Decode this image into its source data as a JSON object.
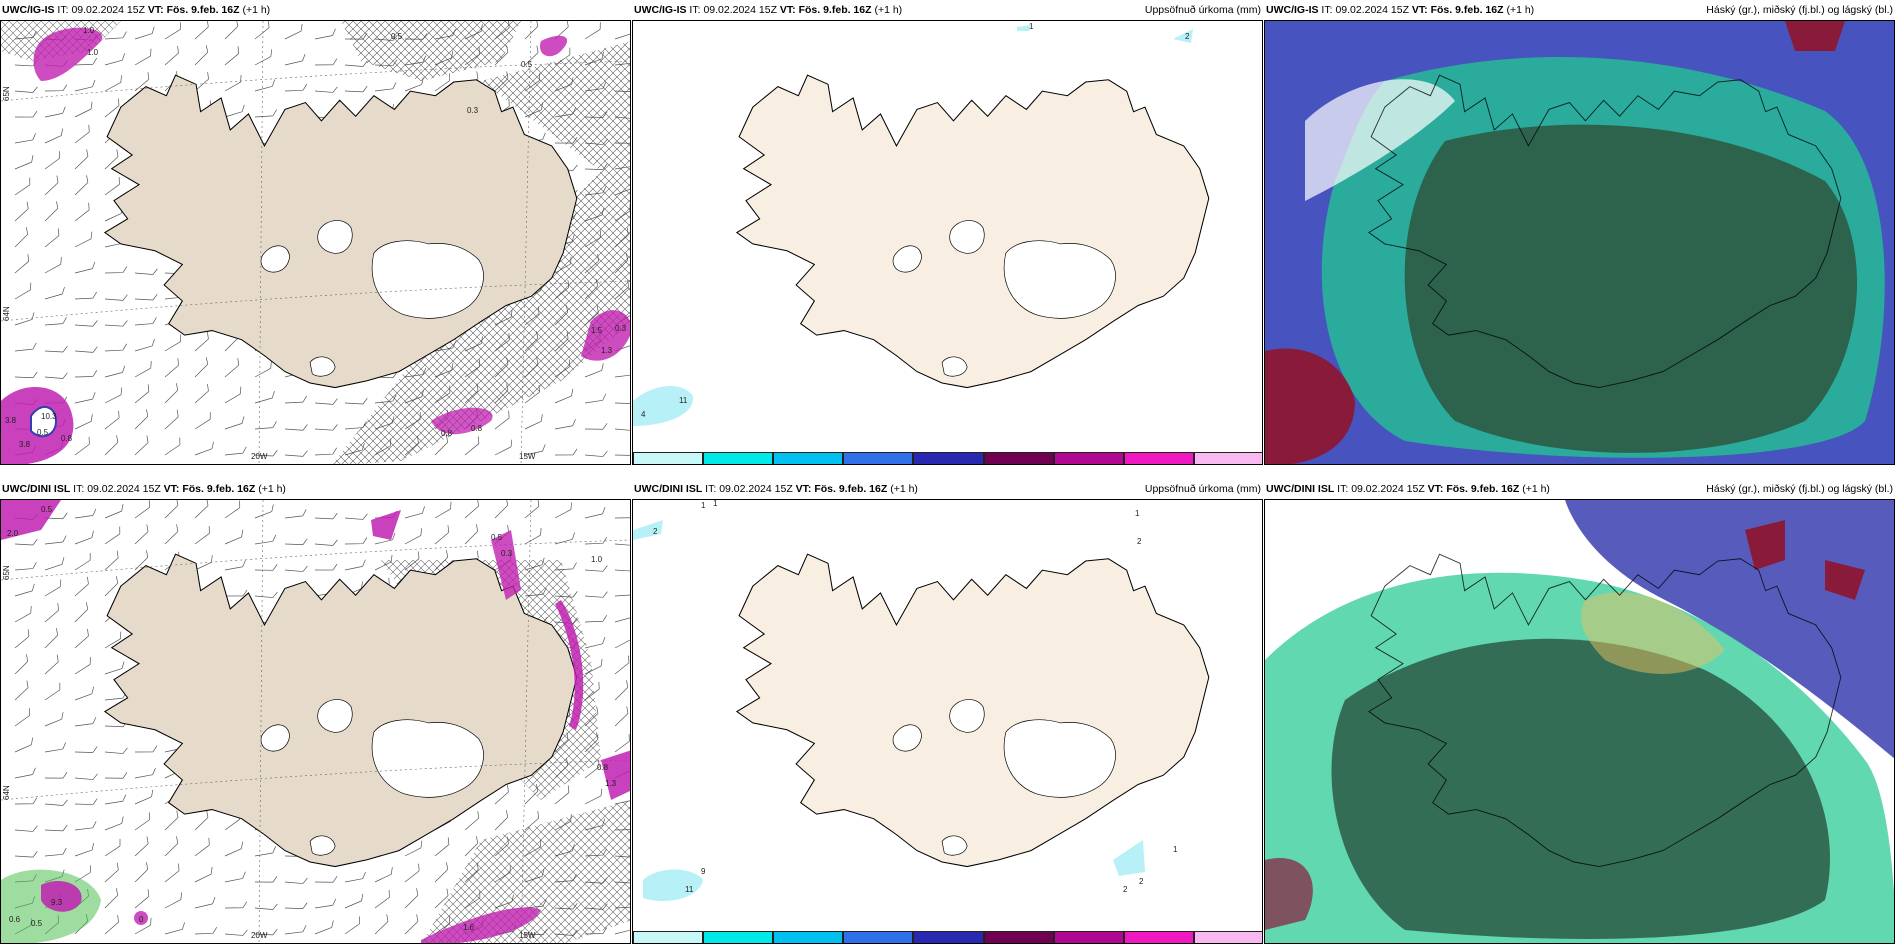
{
  "row1": {
    "wind": {
      "model": "UWC/IG-IS",
      "it_label": "IT:",
      "it": "09.02.2024 15Z",
      "vt_label": "VT:",
      "vt": "Fös. 9.feb. 16Z",
      "lead": "(+1 h)",
      "lon_labels": [
        "20W",
        "15W"
      ],
      "lat_labels": [
        "65N",
        "64N"
      ],
      "contour_labels": [
        "1.0",
        "1.0",
        "0.5",
        "0.3",
        "1.5",
        "0.3",
        "1.3",
        "0.8",
        "0.8",
        "3.8",
        "10.3",
        "0.5",
        "3.8",
        "0.8",
        "0.5"
      ]
    },
    "precip": {
      "model": "UWC/IG-IS",
      "it_label": "IT:",
      "it": "09.02.2024 15Z",
      "vt_label": "VT:",
      "vt": "Fös. 9.feb. 16Z",
      "lead": "(+1 h)",
      "right_title": "Uppsöfnuð úrkoma (mm)",
      "spot_labels": [
        "1",
        "2",
        "11",
        "4"
      ]
    },
    "cloud": {
      "model": "UWC/IG-IS",
      "it_label": "IT:",
      "it": "09.02.2024 15Z",
      "vt_label": "VT:",
      "vt": "Fös. 9.feb. 16Z",
      "lead": "(+1 h)",
      "right_title": "Háský (gr.), miðský (fj.bl.) og lágský (bl.)"
    }
  },
  "row2": {
    "wind": {
      "model": "UWC/DINI ISL",
      "it_label": "IT:",
      "it": "09.02.2024 15Z",
      "vt_label": "VT:",
      "vt": "Fös. 9.feb. 16Z",
      "lead": "(+1 h)",
      "lon_labels": [
        "20W",
        "15W"
      ],
      "lat_labels": [
        "65N",
        "64N"
      ],
      "contour_labels": [
        "2.0",
        "0.5",
        "0.3",
        "1.0",
        "0.5",
        "0.6",
        "9.3",
        "0.5",
        "0",
        "1.6",
        "1.3",
        "0.8"
      ]
    },
    "precip": {
      "model": "UWC/DINI ISL",
      "it_label": "IT:",
      "it": "09.02.2024 15Z",
      "vt_label": "VT:",
      "vt": "Fös. 9.feb. 16Z",
      "lead": "(+1 h)",
      "right_title": "Uppsöfnuð úrkoma (mm)",
      "spot_labels": [
        "1",
        "1",
        "2",
        "1",
        "2",
        "9",
        "11",
        "1",
        "2",
        "2"
      ]
    },
    "cloud": {
      "model": "UWC/DINI ISL",
      "it_label": "IT:",
      "it": "09.02.2024 15Z",
      "vt_label": "VT:",
      "vt": "Fös. 9.feb. 16Z",
      "lead": "(+1 h)",
      "right_title": "Háský (gr.), miðský (fj.bl.) og lágský (bl.)"
    }
  },
  "legend": {
    "ticks": [
      "1",
      "10",
      "25",
      "50",
      "75",
      "100",
      "150",
      "200",
      "400"
    ],
    "colors": [
      "#c8f8f8",
      "#00e8e8",
      "#00c0f0",
      "#3070e8",
      "#2828b0",
      "#700050",
      "#b00890",
      "#f018c0",
      "#f8b8f0"
    ]
  },
  "colors": {
    "land": "#f8efe2",
    "land_wind": "#e6dbca",
    "glacier": "#ffffff",
    "coast": "#000000",
    "precip_light": "#b8f0f8",
    "heavy_purple": "#c020b0",
    "cloud_green": "#2a8a68",
    "cloud_dark": "#2d5a45",
    "cloud_blue": "#3a40b0",
    "cloud_red": "#8a1a3a"
  }
}
